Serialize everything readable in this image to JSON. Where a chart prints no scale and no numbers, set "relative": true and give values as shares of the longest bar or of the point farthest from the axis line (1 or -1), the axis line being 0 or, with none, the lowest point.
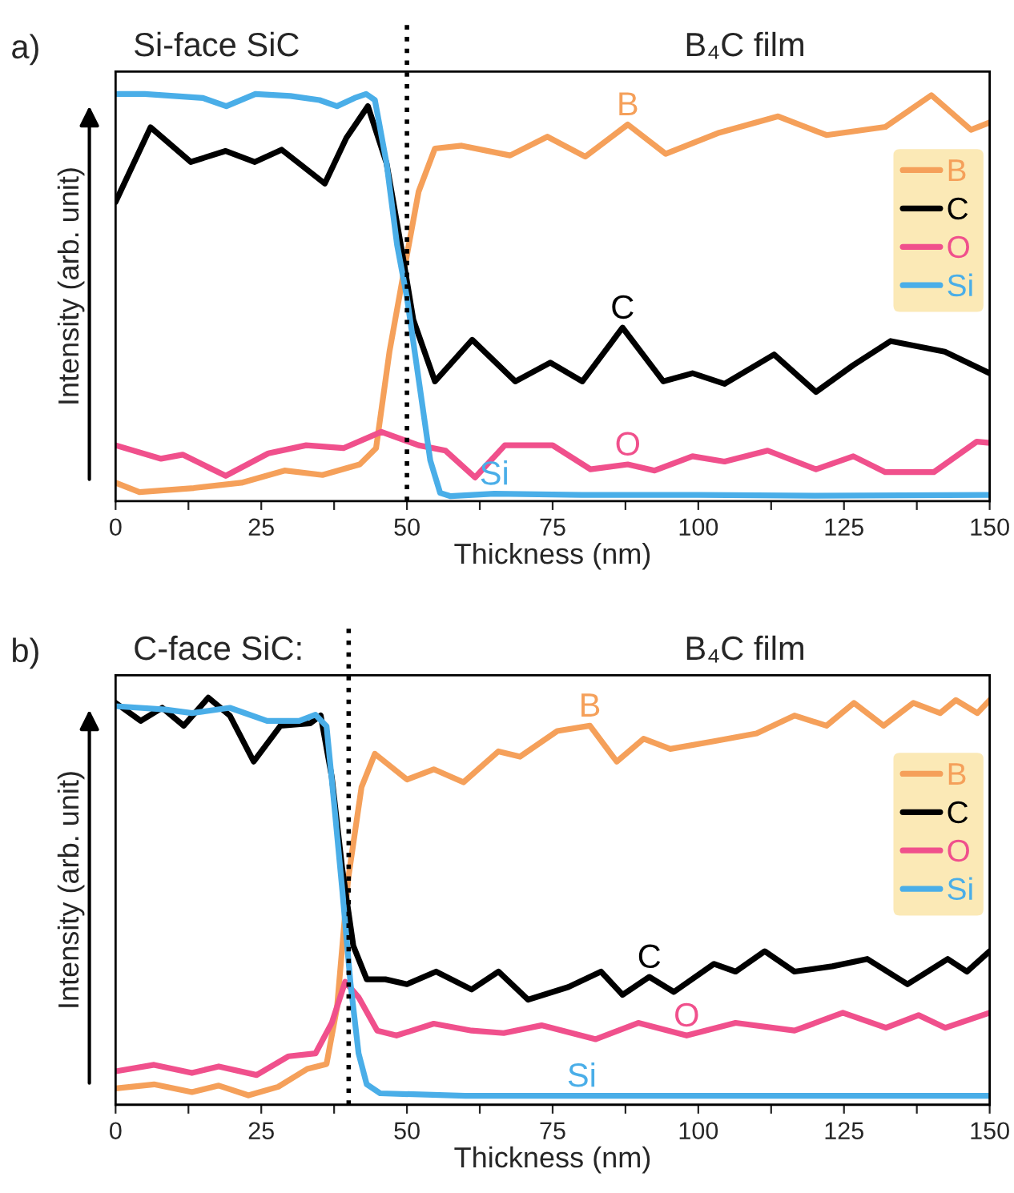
{
  "chart_data": [
    {
      "type": "line",
      "title": "a)",
      "xlabel": "Thickness (nm)",
      "ylabel": "Intensity (arb. unit)",
      "relative": true,
      "xlim": [
        0,
        150
      ],
      "xticks": [
        0,
        {
          "value": 12.5,
          "label": null
        },
        25,
        {
          "value": 37.5,
          "label": null
        },
        50,
        {
          "value": 62.5,
          "label": null
        },
        75,
        {
          "value": 87.5,
          "label": null
        },
        100,
        {
          "value": 112.5,
          "label": null
        },
        125,
        {
          "value": 137.5,
          "label": null
        },
        150
      ],
      "grid": false,
      "legend": "right",
      "line_style": "solid",
      "marker": "none",
      "ref_lines": [
        {
          "axis": "x",
          "value": 50,
          "color": "#000000",
          "line_style": "dotted"
        }
      ],
      "annotations": [
        {
          "text": "B",
          "x": 87.9,
          "y": 0.925
        },
        {
          "text": "C",
          "x": 87,
          "y": 0.426
        },
        {
          "text": "O",
          "x": 87.9,
          "y": 0.09
        },
        {
          "text": "Si",
          "x": 65,
          "y": 0.018
        },
        "Si-face SiC",
        "B₄C film"
      ],
      "series": [
        {
          "name": "B",
          "color": "#f5a05a",
          "x": [
            0,
            4.1,
            13.4,
            21.6,
            29,
            35.5,
            41.9,
            44.7,
            47,
            49.3,
            52,
            54.8,
            59.4,
            67.7,
            74.1,
            80.6,
            87.9,
            94.4,
            103.6,
            113.7,
            122,
            132.1,
            140,
            146.8,
            150
          ],
          "values": [
            0.045,
            0.022,
            0.032,
            0.045,
            0.075,
            0.064,
            0.09,
            0.13,
            0.367,
            0.55,
            0.76,
            0.866,
            0.873,
            0.849,
            0.895,
            0.846,
            0.925,
            0.853,
            0.905,
            0.945,
            0.899,
            0.919,
            0.997,
            0.912,
            0.93
          ]
        },
        {
          "name": "C",
          "color": "#000000",
          "x": [
            0,
            6,
            12.9,
            18.9,
            23.9,
            28.5,
            35.9,
            39.6,
            43.3,
            46.5,
            49.3,
            51.1,
            54.8,
            61.2,
            68.6,
            74.6,
            80.1,
            87,
            94,
            99,
            104.5,
            113,
            120.2,
            126.6,
            133,
            142.3,
            150
          ],
          "values": [
            0.735,
            0.918,
            0.833,
            0.86,
            0.833,
            0.863,
            0.78,
            0.892,
            0.97,
            0.83,
            0.6,
            0.445,
            0.294,
            0.396,
            0.294,
            0.34,
            0.294,
            0.426,
            0.294,
            0.314,
            0.288,
            0.36,
            0.268,
            0.334,
            0.393,
            0.367,
            0.314
          ]
        },
        {
          "name": "O",
          "color": "#f0508c",
          "x": [
            0,
            7.8,
            11.5,
            18.9,
            26.2,
            32.7,
            39.1,
            45.6,
            52,
            56.6,
            61.7,
            66.8,
            75,
            81.5,
            87.9,
            92.5,
            99,
            104.5,
            111.9,
            120.2,
            126.6,
            132.1,
            140.4,
            147.8,
            150
          ],
          "values": [
            0.137,
            0.104,
            0.114,
            0.062,
            0.117,
            0.137,
            0.13,
            0.17,
            0.137,
            0.124,
            0.058,
            0.137,
            0.137,
            0.078,
            0.09,
            0.075,
            0.11,
            0.097,
            0.124,
            0.078,
            0.11,
            0.071,
            0.071,
            0.146,
            0.143
          ]
        },
        {
          "name": "Si",
          "color": "#4aaee8",
          "x": [
            0,
            5,
            10,
            15,
            19,
            24,
            30,
            35,
            38,
            41,
            43,
            44.5,
            46.5,
            48.3,
            50,
            52,
            54,
            55.7,
            57.5,
            65,
            80,
            100,
            120,
            150
          ],
          "values": [
            1.0,
            1.0,
            0.995,
            0.99,
            0.97,
            1.0,
            0.995,
            0.985,
            0.97,
            0.99,
            1.0,
            0.985,
            0.83,
            0.63,
            0.5,
            0.3,
            0.1,
            0.02,
            0.012,
            0.018,
            0.015,
            0.015,
            0.013,
            0.015
          ]
        }
      ]
    },
    {
      "type": "line",
      "title": "b)",
      "xlabel": "Thickness (nm)",
      "ylabel": "Intensity (arb. unit)",
      "relative": true,
      "xlim": [
        0,
        150
      ],
      "xticks": [
        0,
        {
          "value": 12.5,
          "label": null
        },
        25,
        {
          "value": 37.5,
          "label": null
        },
        50,
        {
          "value": 62.5,
          "label": null
        },
        75,
        {
          "value": 87.5,
          "label": null
        },
        100,
        {
          "value": 112.5,
          "label": null
        },
        125,
        {
          "value": 137.5,
          "label": null
        },
        150
      ],
      "grid": false,
      "legend": "right",
      "line_style": "solid",
      "marker": "none",
      "ref_lines": [
        {
          "axis": "x",
          "value": 40,
          "color": "#000000",
          "line_style": "dotted"
        }
      ],
      "annotations": [
        {
          "text": "B",
          "x": 81.4,
          "y": 0.931
        },
        {
          "text": "C",
          "x": 91.6,
          "y": 0.314
        },
        {
          "text": "O",
          "x": 98,
          "y": 0.17
        },
        {
          "text": "Si",
          "x": 80,
          "y": 0.022
        },
        "C-face SiC:",
        "B₄C film"
      ],
      "series": [
        {
          "name": "B",
          "color": "#f5a05a",
          "x": [
            0,
            6.6,
            13.1,
            17.7,
            22.8,
            27.9,
            32.9,
            36.2,
            38,
            39.9,
            42.2,
            44.5,
            50,
            54.6,
            59.7,
            65.7,
            69.4,
            75.8,
            81.4,
            86,
            90.6,
            95.2,
            102.7,
            110,
            116.5,
            122,
            126.7,
            131.8,
            136.9,
            141.5,
            144.2,
            147.9,
            150
          ],
          "values": [
            0.04,
            0.05,
            0.031,
            0.047,
            0.023,
            0.044,
            0.088,
            0.1,
            0.239,
            0.553,
            0.78,
            0.862,
            0.799,
            0.824,
            0.792,
            0.868,
            0.855,
            0.918,
            0.931,
            0.843,
            0.899,
            0.874,
            0.893,
            0.912,
            0.956,
            0.931,
            0.987,
            0.931,
            0.987,
            0.962,
            0.994,
            0.962,
            0.994
          ]
        },
        {
          "name": "C",
          "color": "#000000",
          "x": [
            0,
            4.3,
            8,
            11.7,
            15.9,
            19.6,
            23.7,
            28.3,
            33.4,
            35.2,
            37.1,
            38.9,
            40.8,
            43.1,
            46.3,
            50,
            55,
            61.1,
            65.7,
            70.8,
            77.7,
            83.3,
            87,
            91.6,
            95.8,
            102.7,
            106.4,
            111.4,
            116.5,
            123,
            129,
            135.9,
            142.8,
            146.1,
            150
          ],
          "values": [
            0.987,
            0.943,
            0.975,
            0.931,
            1.0,
            0.956,
            0.843,
            0.931,
            0.937,
            0.956,
            0.805,
            0.579,
            0.39,
            0.308,
            0.308,
            0.296,
            0.327,
            0.283,
            0.327,
            0.258,
            0.289,
            0.327,
            0.27,
            0.314,
            0.277,
            0.346,
            0.327,
            0.377,
            0.327,
            0.34,
            0.358,
            0.296,
            0.358,
            0.327,
            0.377
          ]
        },
        {
          "name": "O",
          "color": "#f0508c",
          "x": [
            0,
            6.6,
            13.1,
            17.7,
            24.2,
            29.7,
            34.3,
            37.1,
            39.4,
            41.7,
            44.9,
            48.2,
            54.6,
            61.1,
            66.6,
            73.1,
            82.4,
            89.7,
            98,
            106.4,
            116.5,
            124.8,
            132.2,
            137.8,
            142.4,
            150
          ],
          "values": [
            0.082,
            0.098,
            0.078,
            0.094,
            0.073,
            0.119,
            0.126,
            0.201,
            0.302,
            0.264,
            0.182,
            0.17,
            0.199,
            0.182,
            0.176,
            0.195,
            0.161,
            0.201,
            0.17,
            0.201,
            0.182,
            0.226,
            0.189,
            0.22,
            0.189,
            0.226
          ]
        },
        {
          "name": "Si",
          "color": "#4aaee8",
          "x": [
            0,
            8.5,
            13.1,
            19.6,
            26,
            31.5,
            34.3,
            36.2,
            37.5,
            38.9,
            40.3,
            41.7,
            43.1,
            45.4,
            60,
            80,
            100,
            120,
            150
          ],
          "values": [
            0.979,
            0.971,
            0.962,
            0.975,
            0.943,
            0.943,
            0.958,
            0.93,
            0.74,
            0.528,
            0.3,
            0.126,
            0.05,
            0.028,
            0.022,
            0.022,
            0.022,
            0.022,
            0.022
          ]
        }
      ]
    }
  ]
}
